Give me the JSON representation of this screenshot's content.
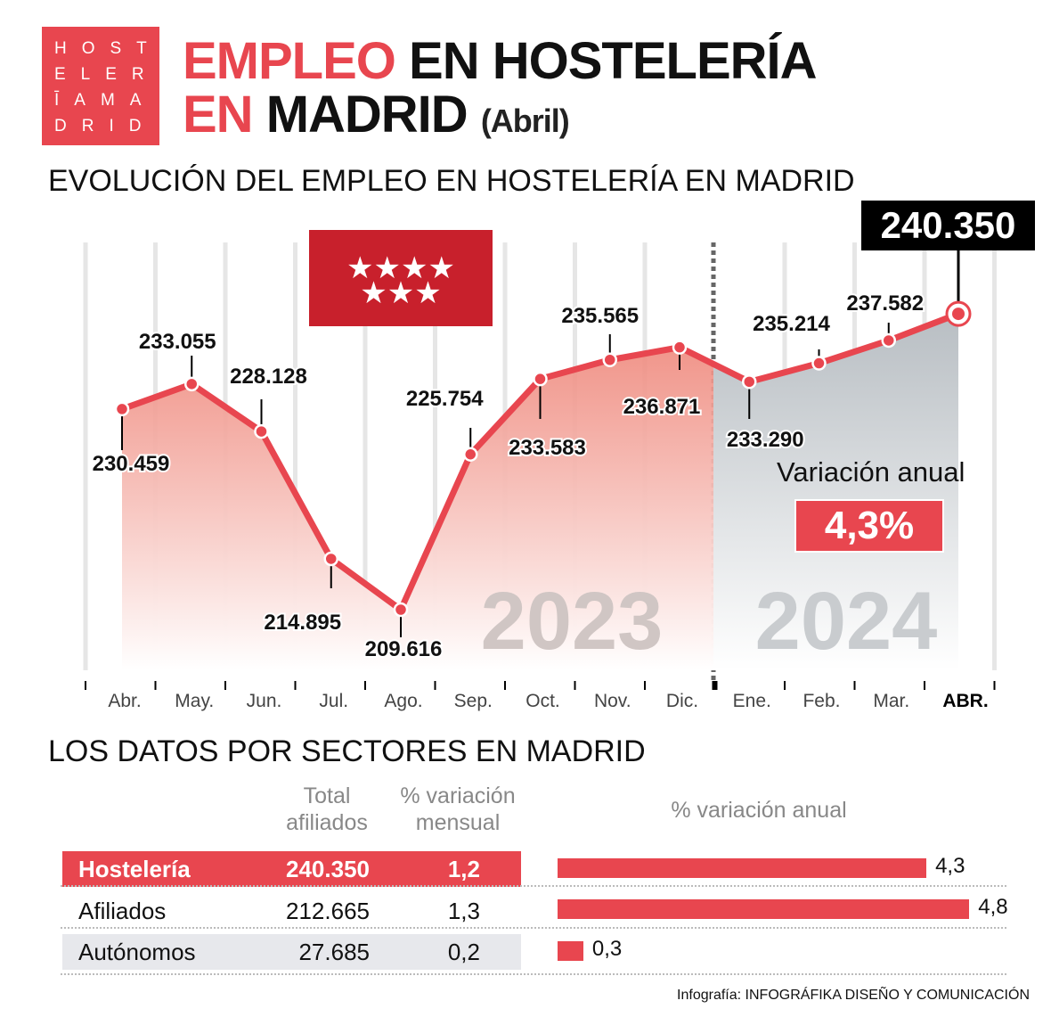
{
  "logo": {
    "lines": [
      "HOST",
      "ELER",
      "ĪAMA",
      "DRID"
    ]
  },
  "header": {
    "title_red": "EMPLEO",
    "title_black_1": "EN HOSTELERÍA",
    "title_red_2": "EN",
    "title_black_2": "MADRID",
    "subtitle": "(Abril)"
  },
  "chart_title": "EVOLUCIÓN DEL EMPLEO EN HOSTELERÍA EN MADRID",
  "colors": {
    "accent": "#e8464f",
    "area_2024": "#c9cdd1",
    "flag": "#c8202c"
  },
  "flag_icon": "comunidad-de-madrid-flag-seven-stars",
  "chart_data": {
    "type": "line",
    "categories": [
      "Abr.",
      "May.",
      "Jun.",
      "Jul.",
      "Ago.",
      "Sep.",
      "Oct.",
      "Nov.",
      "Dic.",
      "Ene.",
      "Feb.",
      "Mar.",
      "ABR."
    ],
    "values": [
      230459,
      233055,
      228128,
      214895,
      209616,
      225754,
      233583,
      235565,
      236871,
      233290,
      235214,
      237582,
      240350
    ],
    "data_labels": [
      "230.459",
      "233.055",
      "228.128",
      "214.895",
      "209.616",
      "225.754",
      "233.583",
      "235.565",
      "236.871",
      "233.290",
      "235.214",
      "237.582",
      "240.350"
    ],
    "years": [
      "2023",
      "2024"
    ],
    "highlight_label": "240.350",
    "annotation_label": "Variación anual",
    "annotation_value": "4,3%"
  },
  "sectors": {
    "title": "LOS DATOS POR SECTORES EN MADRID",
    "headers": {
      "total": "Total afiliados",
      "mensual": "% variación mensual",
      "anual": "% variación anual"
    },
    "headers_lines": {
      "total": [
        "Total",
        "afiliados"
      ],
      "mensual": [
        "% variación",
        "mensual"
      ]
    },
    "rows": [
      {
        "name": "Hostelería",
        "total": "240.350",
        "mensual": "1,2",
        "anual": "4,3",
        "anual_value": 4.3
      },
      {
        "name": "Afiliados",
        "total": "212.665",
        "mensual": "1,3",
        "anual": "4,8",
        "anual_value": 4.8
      },
      {
        "name": "Autónomos",
        "total": "27.685",
        "mensual": "0,2",
        "anual": "0,3",
        "anual_value": 0.3
      }
    ]
  },
  "credit": {
    "label": "Infografía:",
    "source": "INFOGRÁFIKA DISEÑO Y COMUNICACIÓN"
  }
}
